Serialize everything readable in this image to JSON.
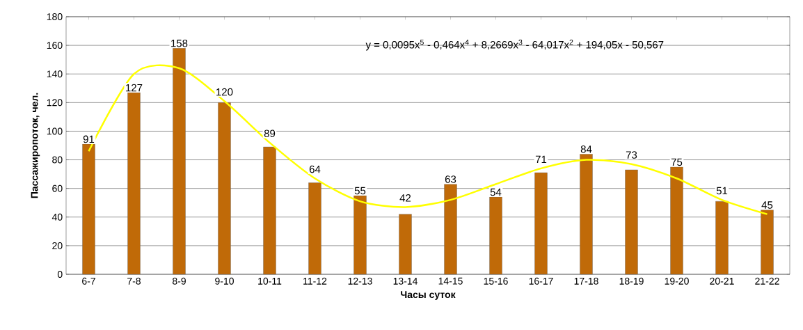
{
  "chart_data": {
    "type": "bar",
    "xlabel": "Часы суток",
    "ylabel": "Пассажиропоток, чел.",
    "categories": [
      "6-7",
      "7-8",
      "8-9",
      "9-10",
      "10-11",
      "11-12",
      "12-13",
      "13-14",
      "14-15",
      "15-16",
      "16-17",
      "17-18",
      "18-19",
      "19-20",
      "20-21",
      "21-22"
    ],
    "series": [
      {
        "color": "#c06a08",
        "values": [
          91,
          127,
          158,
          120,
          89,
          64,
          55,
          42,
          63,
          54,
          71,
          84,
          73,
          75,
          51,
          45
        ],
        "value_labels": [
          "91",
          "127",
          "158",
          "120",
          "89",
          "64",
          "55",
          "42",
          "63",
          "54",
          "71",
          "84",
          "73",
          "75",
          "51",
          "45"
        ]
      },
      {
        "type": "line",
        "color": "#ffff00",
        "values": [
          86,
          140,
          144,
          121,
          92,
          67,
          51,
          47,
          52,
          63,
          74,
          80,
          77,
          67,
          52,
          42
        ]
      }
    ],
    "ylim": [
      0,
      180
    ],
    "yticks": [
      0,
      20,
      40,
      60,
      80,
      100,
      120,
      140,
      160,
      180
    ],
    "grid": "y",
    "annotations": [
      "y = 0,0095x$^{5}$ - 0,464x$^{4}$ + 8,2669x$^{3}$ - 64,017x$^{2}$ + 194,05x - 50,567"
    ]
  }
}
